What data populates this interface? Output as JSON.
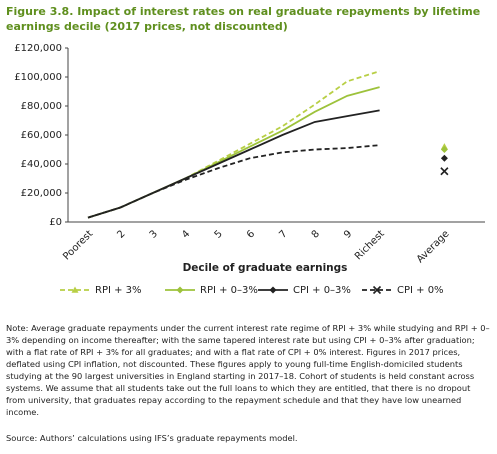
{
  "chart_data": {
    "type": "line",
    "title": "Figure 3.8. Impact of interest rates on real graduate repayments by lifetime earnings decile (2017 prices, not discounted)",
    "x_label": "Decile of graduate earnings",
    "categories": [
      "Poorest",
      "2",
      "3",
      "4",
      "5",
      "6",
      "7",
      "8",
      "9",
      "Richest",
      null,
      "Average"
    ],
    "series": [
      {
        "name": "RPI + 3%",
        "color": "#b8cf45",
        "dash": true,
        "marker": "triangle",
        "values": [
          3000,
          10000,
          20000,
          30000,
          42000,
          54000,
          66000,
          81000,
          97000,
          104000,
          null,
          52000
        ]
      },
      {
        "name": "RPI + 0–3%",
        "color": "#9dc23b",
        "dash": false,
        "marker": "diamond",
        "values": [
          3000,
          10000,
          20000,
          30000,
          41000,
          52000,
          63000,
          76000,
          87000,
          93000,
          null,
          50000
        ]
      },
      {
        "name": "CPI + 0–3%",
        "color": "#222222",
        "dash": false,
        "marker": "diamond",
        "values": [
          3000,
          10000,
          20000,
          30000,
          40000,
          50000,
          60000,
          69000,
          73000,
          77000,
          null,
          44000
        ]
      },
      {
        "name": "CPI + 0%",
        "color": "#222222",
        "dash": true,
        "marker": "x",
        "values": [
          3000,
          10000,
          20000,
          29000,
          37000,
          44000,
          48000,
          50000,
          51000,
          53000,
          null,
          35000
        ]
      }
    ],
    "ylim": [
      0,
      120000
    ],
    "yticks": [
      {
        "value": 0,
        "label": "£0"
      },
      {
        "value": 20000,
        "label": "£20,000"
      },
      {
        "value": 40000,
        "label": "£40,000"
      },
      {
        "value": 60000,
        "label": "£60,000"
      },
      {
        "value": 80000,
        "label": "£80,000"
      },
      {
        "value": 100000,
        "label": "£100,000"
      },
      {
        "value": 120000,
        "label": "£120,000"
      }
    ],
    "grid": false
  },
  "note": "Note: Average graduate repayments under the current interest rate regime of RPI + 3% while studying and RPI + 0–3% depending on income thereafter; with the same tapered interest rate but using CPI + 0–3% after graduation; with a flat rate of RPI + 3% for all graduates; and with a flat rate of CPI + 0% interest. Figures in 2017 prices, deflated using CPI inflation, not discounted. These figures apply to young full-time English-domiciled students studying at the 90 largest universities in England starting in 2017–18. Cohort of students is held constant across systems. We assume that all students take out the full loans to which they are entitled, that there is no dropout from university, that graduates repay according to the repayment schedule and that they have low unearned income.",
  "source": "Source: Authors’ calculations using IFS’s graduate repayments model."
}
